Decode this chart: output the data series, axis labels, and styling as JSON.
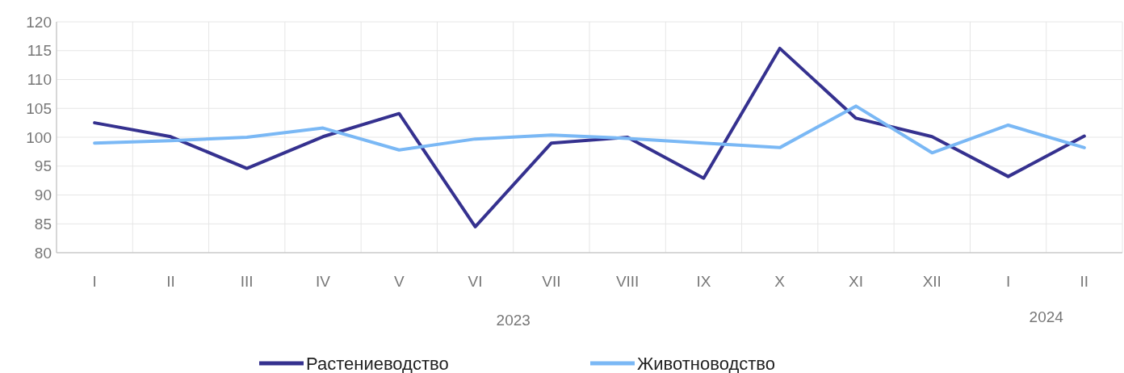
{
  "chart_data": {
    "type": "line",
    "categories": [
      "I",
      "II",
      "III",
      "IV",
      "V",
      "VI",
      "VII",
      "VIII",
      "IX",
      "X",
      "XI",
      "XII",
      "I",
      "II"
    ],
    "series": [
      {
        "name": "Растениеводство",
        "color": "#35318f",
        "values": [
          102.5,
          100.1,
          94.6,
          100.1,
          104.1,
          84.5,
          99,
          100,
          92.9,
          115.4,
          103.3,
          100.1,
          93.2,
          100.2
        ]
      },
      {
        "name": "Животноводство",
        "color": "#7ab8f5",
        "values": [
          99,
          99.4,
          100,
          101.6,
          97.8,
          99.7,
          100.4,
          99.8,
          99,
          98.2,
          105.4,
          97.3,
          102.1,
          98.2
        ]
      }
    ],
    "ylim": [
      80,
      120
    ],
    "yticks": [
      80,
      85,
      90,
      95,
      100,
      105,
      110,
      115,
      120
    ],
    "grid": true,
    "legend": "bottom",
    "marker": "none",
    "line_style": "solid",
    "annotations": [
      "2023",
      "2024"
    ]
  }
}
